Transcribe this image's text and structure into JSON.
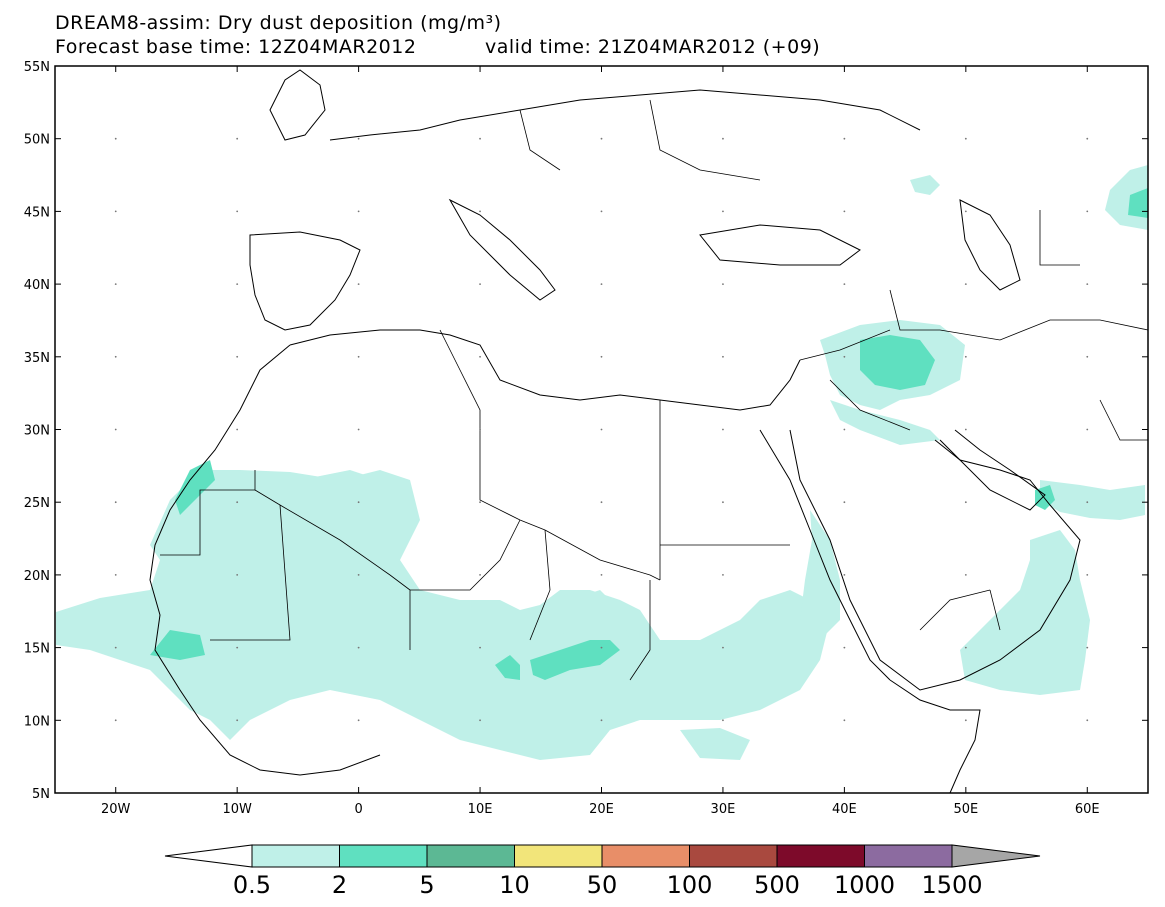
{
  "header": {
    "title": "DREAM8-assim: Dry dust deposition (mg/m³)",
    "base_time": "Forecast base time: 12Z04MAR2012",
    "valid_time": "valid time: 21Z04MAR2012 (+09)"
  },
  "map": {
    "lat_labels": [
      "55N",
      "50N",
      "45N",
      "40N",
      "35N",
      "30N",
      "25N",
      "20N",
      "15N",
      "10N",
      "5N"
    ],
    "lon_labels": [
      "20W",
      "10W",
      "0",
      "10E",
      "20E",
      "30E",
      "40E",
      "50E",
      "60E"
    ],
    "lon_range": [
      -25,
      65
    ],
    "lat_range": [
      5,
      55
    ]
  },
  "colorbar": {
    "labels": [
      "0.5",
      "2",
      "5",
      "10",
      "50",
      "100",
      "500",
      "1000",
      "1500"
    ],
    "colors": [
      "#bff0e8",
      "#5fe0c0",
      "#5cb894",
      "#f2e57a",
      "#e88e68",
      "#a9493f",
      "#7d0a2a",
      "#8c6ba0",
      "#a6a6a6"
    ]
  }
}
